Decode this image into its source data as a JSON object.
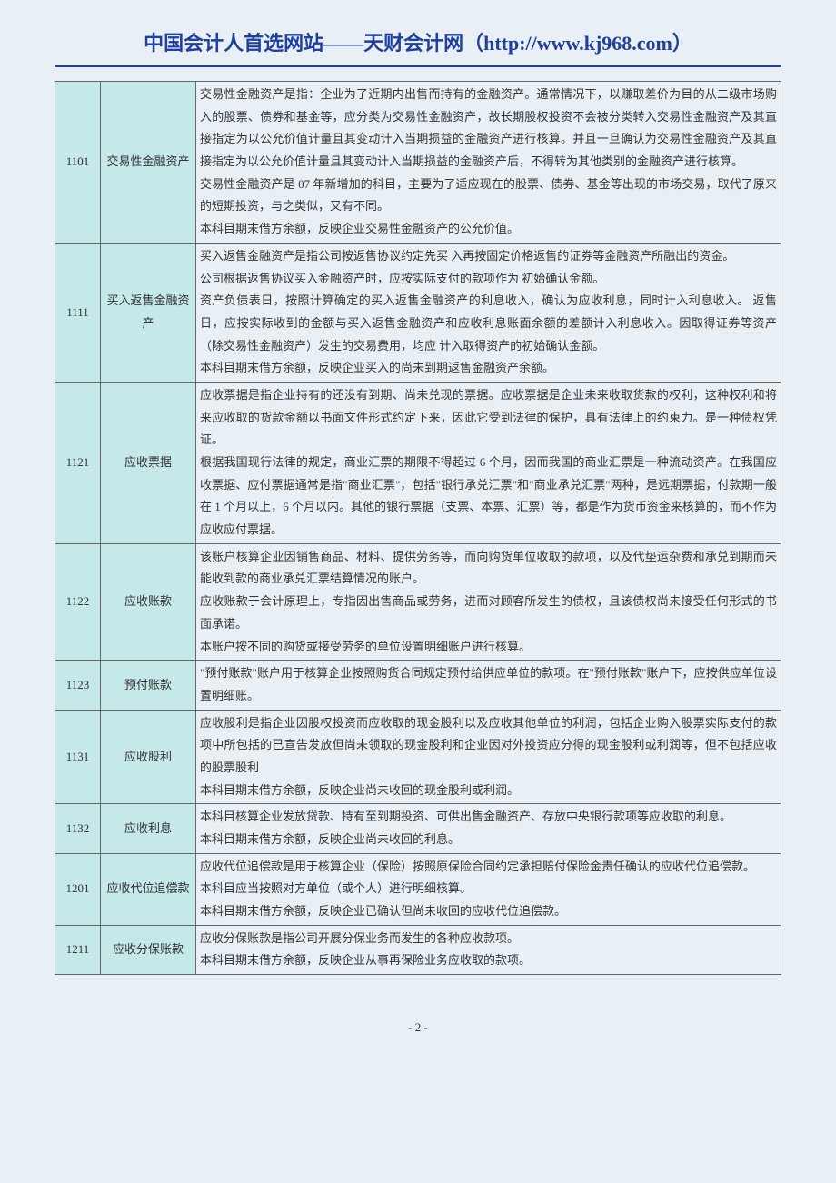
{
  "header": {
    "title_prefix": "中国会计人首选网站——天财会计网",
    "url": "（http://www.kj968.com）"
  },
  "table": {
    "rows": [
      {
        "code": "1101",
        "name": "交易性金融资产",
        "desc": "交易性金融资产是指：企业为了近期内出售而持有的金融资产。通常情况下，以赚取差价为目的从二级市场购入的股票、债券和基金等，应分类为交易性金融资产，故长期股权投资不会被分类转入交易性金融资产及其直接指定为以公允价值计量且其变动计入当期损益的金融资产进行核算。并且一旦确认为交易性金融资产及其直接指定为以公允价值计量且其变动计入当期损益的金融资产后，不得转为其他类别的金融资产进行核算。\n交易性金融资产是 07 年新增加的科目，主要为了适应现在的股票、债券、基金等出现的市场交易，取代了原来的短期投资，与之类似，又有不同。\n本科目期末借方余额，反映企业交易性金融资产的公允价值。"
      },
      {
        "code": "1111",
        "name": "买入返售金融资产",
        "desc": "买入返售金融资产是指公司按返售协议约定先买 入再按固定价格返售的证券等金融资产所融出的资金。\n公司根据返售协议买入金融资产时，应按实际支付的款项作为 初始确认金额。\n资产负债表日，按照计算确定的买入返售金融资产的利息收入，确认为应收利息，同时计入利息收入。 返售日，应按实际收到的金额与买入返售金融资产和应收利息账面余额的差额计入利息收入。因取得证券等资产（除交易性金融资产）发生的交易费用，均应 计入取得资产的初始确认金额。\n本科目期末借方余额，反映企业买入的尚未到期返售金融资产余额。"
      },
      {
        "code": "1121",
        "name": "应收票据",
        "desc": "应收票据是指企业持有的还没有到期、尚未兑现的票据。应收票据是企业未来收取货款的权利，这种权利和将来应收取的货款金额以书面文件形式约定下来，因此它受到法律的保护，具有法律上的约束力。是一种债权凭证。\n根据我国现行法律的规定，商业汇票的期限不得超过 6 个月，因而我国的商业汇票是一种流动资产。在我国应收票据、应付票据通常是指\"商业汇票\"，包括\"银行承兑汇票\"和\"商业承兑汇票\"两种，是远期票据，付款期一般在 1 个月以上，6 个月以内。其他的银行票据（支票、本票、汇票）等，都是作为货币资金来核算的，而不作为应收应付票据。"
      },
      {
        "code": "1122",
        "name": "应收账款",
        "desc": "该账户核算企业因销售商品、材料、提供劳务等，而向购货单位收取的款项，以及代垫运杂费和承兑到期而未能收到款的商业承兑汇票结算情况的账户。\n应收账款于会计原理上，专指因出售商品或劳务，进而对顾客所发生的债权，且该债权尚未接受任何形式的书面承诺。\n本账户按不同的购货或接受劳务的单位设置明细账户进行核算。"
      },
      {
        "code": "1123",
        "name": "预付账款",
        "desc": "\"预付账款\"账户用于核算企业按照购货合同规定预付给供应单位的款项。在\"预付账款\"账户下，应按供应单位设置明细账。"
      },
      {
        "code": "1131",
        "name": "应收股利",
        "desc": "应收股利是指企业因股权投资而应收取的现金股利以及应收其他单位的利润，包括企业购入股票实际支付的款项中所包括的已宣告发放但尚未领取的现金股利和企业因对外投资应分得的现金股利或利润等，但不包括应收的股票股利\n本科目期末借方余额，反映企业尚未收回的现金股利或利润。"
      },
      {
        "code": "1132",
        "name": "应收利息",
        "desc": "本科目核算企业发放贷款、持有至到期投资、可供出售金融资产、存放中央银行款项等应收取的利息。\n本科目期末借方余额，反映企业尚未收回的利息。"
      },
      {
        "code": "1201",
        "name": "应收代位追偿款",
        "desc": "应收代位追偿款是用于核算企业（保险）按照原保险合同约定承担赔付保险金责任确认的应收代位追偿款。\n本科目应当按照对方单位（或个人）进行明细核算。\n本科目期末借方余额，反映企业已确认但尚未收回的应收代位追偿款。"
      },
      {
        "code": "1211",
        "name": "应收分保账款",
        "desc": "应收分保账款是指公司开展分保业务而发生的各种应收款项。\n本科目期末借方余额，反映企业从事再保险业务应收取的款项。"
      }
    ]
  },
  "footer": {
    "page": "- 2 -"
  }
}
